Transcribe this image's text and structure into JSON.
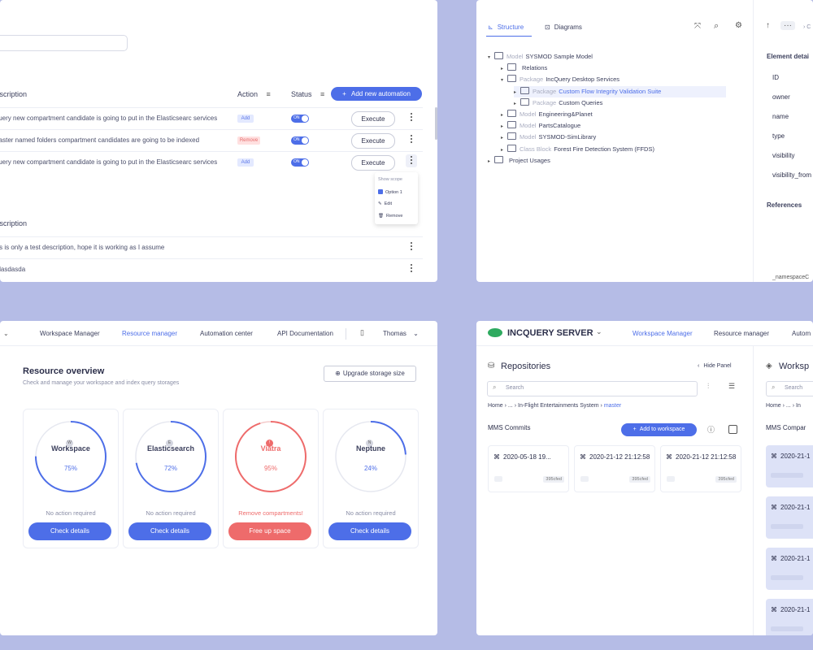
{
  "automation": {
    "header": {
      "description": "Description",
      "action": "Action",
      "status": "Status",
      "add_button": "Add new automation"
    },
    "rows": [
      {
        "text": "Query new compartment candidate is going to put in the Elasticsearc services",
        "badge": "Add",
        "toggle": "ON",
        "execute": "Execute"
      },
      {
        "text": "Master named folders compartment candidates are going to be indexed",
        "badge": "Remove",
        "toggle": "ON",
        "execute": "Execute"
      },
      {
        "text": "Query new compartment candidate is going to put in the Elasticsearc services",
        "badge": "Add",
        "toggle": "ON",
        "execute": "Execute"
      }
    ],
    "menu": {
      "title": "Show scope",
      "items": [
        "Option 1",
        "Edit",
        "Remove"
      ]
    },
    "section2_header": "Description",
    "rows2": [
      "This is only a test description, hope it is working as I assume",
      "asdasdasda"
    ]
  },
  "structure": {
    "tabs": [
      "Structure",
      "Diagrams"
    ],
    "tree": [
      {
        "level": 0,
        "caret": "▾",
        "pre": "Model",
        "label": "SYSMOD Sample Model",
        "selected": false
      },
      {
        "level": 1,
        "caret": "▸",
        "pre": "",
        "label": "Relations",
        "selected": false
      },
      {
        "level": 1,
        "caret": "▾",
        "pre": "Package",
        "label": "IncQuery Desktop Services",
        "selected": false
      },
      {
        "level": 2,
        "caret": "▸",
        "pre": "Package",
        "label": "Custom Flow Integrity Validation Suite",
        "selected": true
      },
      {
        "level": 2,
        "caret": "▸",
        "pre": "Package",
        "label": "Custom Queries",
        "selected": false
      },
      {
        "level": 1,
        "caret": "▸",
        "pre": "Model",
        "label": "Engineering&Planet",
        "selected": false
      },
      {
        "level": 1,
        "caret": "▸",
        "pre": "Model",
        "label": "PartsCatalogue",
        "selected": false
      },
      {
        "level": 1,
        "caret": "▸",
        "pre": "Model",
        "label": "SYSMOD-SimLibrary",
        "selected": false
      },
      {
        "level": 1,
        "caret": "▸",
        "pre": "Class Block",
        "label": "Forest Fire Detection System (FFDS)",
        "selected": false
      },
      {
        "level": 0,
        "caret": "▸",
        "pre": "",
        "label": "Project Usages",
        "selected": false
      }
    ],
    "details_title": "Element detai",
    "props": [
      "ID",
      "owner",
      "name",
      "type",
      "visibility",
      "visibility_from"
    ],
    "references": "References",
    "namespace": "_namespaceC"
  },
  "resource": {
    "nav": [
      "Workspace Manager",
      "Resource manager",
      "Automation center",
      "API Documentation"
    ],
    "user": "Thomas",
    "title": "Resource overview",
    "subtitle": "Check and manage your workspace and index query storages",
    "upgrade": "Upgrade storage size",
    "cards": [
      {
        "name": "Workspace",
        "pct": "75%",
        "value": 0.75,
        "note": "No action required",
        "button": "Check details",
        "alert": false,
        "icon": "W"
      },
      {
        "name": "Elasticsearch",
        "pct": "72%",
        "value": 0.72,
        "note": "No action required",
        "button": "Check details",
        "alert": false,
        "icon": "E"
      },
      {
        "name": "Viatra",
        "pct": "95%",
        "value": 0.95,
        "note": "Remove compartments!",
        "button": "Free up space",
        "alert": true,
        "icon": "!"
      },
      {
        "name": "Neptune",
        "pct": "24%",
        "value": 0.24,
        "note": "No action required",
        "button": "Check details",
        "alert": false,
        "icon": "N"
      }
    ],
    "colors": {
      "accent": "#4d6ee8",
      "alert": "#ee6b6b"
    }
  },
  "server": {
    "brand": "INCQUERY SERVER",
    "nav": [
      "Workspace Manager",
      "Resource manager",
      "Autom"
    ],
    "repos_title": "Repositories",
    "hide_panel": "Hide Panel",
    "search_placeholder": "Search",
    "breadcrumb": [
      "Home",
      "...",
      "In-Flight Entertainments System",
      "master"
    ],
    "commits_title": "MMS Commits",
    "add_workspace": "Add to workspace",
    "commits": [
      {
        "time": "2020-05-18 19...",
        "tag": "395cfed"
      },
      {
        "time": "2020-21-12 21:12:58",
        "tag": "395cfed"
      },
      {
        "time": "2020-21-12 21:12:58",
        "tag": "395cfed"
      }
    ],
    "ws_title": "Worksp",
    "ws_search": "Search",
    "ws_breadcrumb": [
      "Home",
      "...",
      "In"
    ],
    "ws_section": "MMS Compar",
    "ws_items": [
      "2020-21-1",
      "2020-21-1",
      "2020-21-1",
      "2020-21-1"
    ]
  }
}
